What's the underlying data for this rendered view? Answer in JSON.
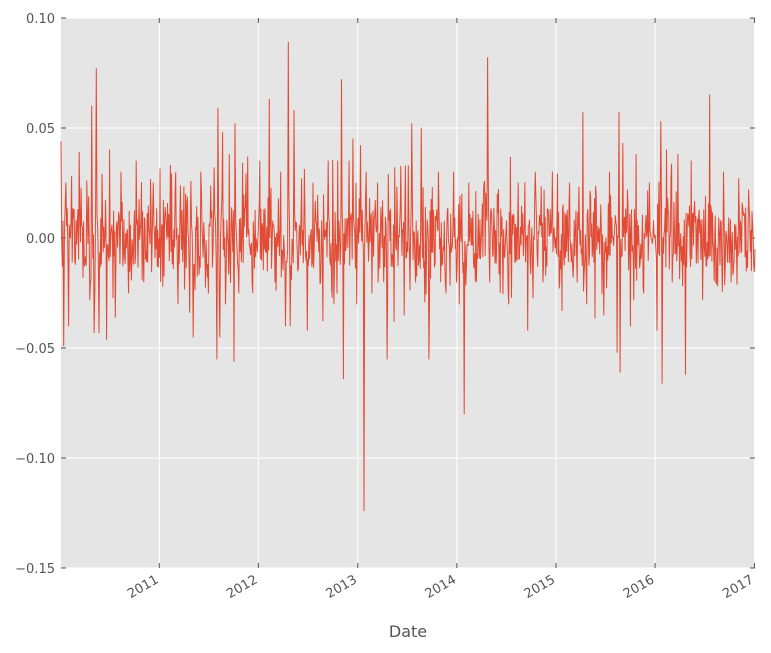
{
  "chart_data": {
    "type": "line",
    "title": "",
    "xlabel": "Date",
    "ylabel": "",
    "x_range": [
      "2010-01-04",
      "2017-01-03"
    ],
    "ylim": [
      -0.15,
      0.1
    ],
    "yticks": [
      {
        "value": 0.1,
        "label": "0.10"
      },
      {
        "value": 0.05,
        "label": "0.05"
      },
      {
        "value": 0.0,
        "label": "0.00"
      },
      {
        "value": -0.05,
        "label": "−0.05"
      },
      {
        "value": -0.1,
        "label": "−0.10"
      },
      {
        "value": -0.15,
        "label": "−0.15"
      }
    ],
    "xticks": [
      {
        "date": "2011-01-01",
        "label": "2011"
      },
      {
        "date": "2012-01-01",
        "label": "2012"
      },
      {
        "date": "2013-01-01",
        "label": "2013"
      },
      {
        "date": "2014-01-01",
        "label": "2014"
      },
      {
        "date": "2015-01-01",
        "label": "2015"
      },
      {
        "date": "2016-01-01",
        "label": "2016"
      },
      {
        "date": "2017-01-01",
        "label": "2017"
      }
    ],
    "grid": true,
    "legend": "none",
    "colors": {
      "line": "#E24A33",
      "plot_bg": "#E5E5E5",
      "grid": "#FFFFFF",
      "text": "#555555"
    },
    "series": [
      {
        "points": [
          [
            "2010-01-04",
            0.044
          ],
          [
            "2010-01-14",
            -0.049
          ],
          [
            "2010-01-22",
            0.025
          ],
          [
            "2010-02-01",
            -0.04
          ],
          [
            "2010-02-12",
            0.028
          ],
          [
            "2010-02-26",
            -0.012
          ],
          [
            "2010-03-12",
            0.039
          ],
          [
            "2010-03-26",
            -0.018
          ],
          [
            "2010-04-09",
            0.026
          ],
          [
            "2010-04-20",
            -0.028
          ],
          [
            "2010-04-27",
            0.06
          ],
          [
            "2010-05-06",
            -0.043
          ],
          [
            "2010-05-14",
            0.077
          ],
          [
            "2010-05-24",
            -0.043
          ],
          [
            "2010-06-04",
            0.029
          ],
          [
            "2010-06-21",
            -0.046
          ],
          [
            "2010-07-02",
            0.04
          ],
          [
            "2010-07-23",
            -0.036
          ],
          [
            "2010-08-13",
            0.03
          ],
          [
            "2010-09-10",
            -0.025
          ],
          [
            "2010-10-08",
            0.035
          ],
          [
            "2010-11-05",
            -0.02
          ],
          [
            "2010-12-10",
            0.025
          ],
          [
            "2011-01-14",
            -0.022
          ],
          [
            "2011-02-11",
            0.033
          ],
          [
            "2011-03-11",
            -0.03
          ],
          [
            "2011-04-08",
            0.02
          ],
          [
            "2011-05-06",
            -0.045
          ],
          [
            "2011-06-03",
            0.03
          ],
          [
            "2011-07-01",
            -0.025
          ],
          [
            "2011-07-22",
            0.032
          ],
          [
            "2011-08-01",
            -0.055
          ],
          [
            "2011-08-05",
            0.059
          ],
          [
            "2011-08-12",
            -0.045
          ],
          [
            "2011-08-22",
            0.048
          ],
          [
            "2011-09-02",
            -0.03
          ],
          [
            "2011-09-16",
            0.038
          ],
          [
            "2011-10-03",
            -0.056
          ],
          [
            "2011-10-07",
            0.052
          ],
          [
            "2011-10-21",
            -0.025
          ],
          [
            "2011-11-04",
            0.034
          ],
          [
            "2011-12-09",
            -0.02
          ],
          [
            "2012-01-06",
            0.035
          ],
          [
            "2012-02-03",
            -0.015
          ],
          [
            "2012-02-10",
            0.063
          ],
          [
            "2012-03-02",
            -0.02
          ],
          [
            "2012-03-23",
            0.03
          ],
          [
            "2012-04-10",
            -0.04
          ],
          [
            "2012-04-20",
            0.089
          ],
          [
            "2012-04-27",
            -0.04
          ],
          [
            "2012-05-11",
            0.058
          ],
          [
            "2012-05-25",
            -0.015
          ],
          [
            "2012-06-08",
            0.027
          ],
          [
            "2012-06-29",
            -0.042
          ],
          [
            "2012-07-20",
            0.025
          ],
          [
            "2012-08-17",
            -0.02
          ],
          [
            "2012-09-14",
            0.035
          ],
          [
            "2012-10-05",
            -0.03
          ],
          [
            "2012-10-19",
            0.035
          ],
          [
            "2012-11-02",
            0.072
          ],
          [
            "2012-11-09",
            -0.064
          ],
          [
            "2012-11-30",
            0.035
          ],
          [
            "2012-12-14",
            0.045
          ],
          [
            "2012-12-28",
            -0.03
          ],
          [
            "2013-01-11",
            0.042
          ],
          [
            "2013-01-24",
            -0.124
          ],
          [
            "2013-02-01",
            0.03
          ],
          [
            "2013-02-22",
            -0.025
          ],
          [
            "2013-03-15",
            0.025
          ],
          [
            "2013-04-19",
            -0.055
          ],
          [
            "2013-05-17",
            0.032
          ],
          [
            "2013-06-21",
            -0.035
          ],
          [
            "2013-07-19",
            0.052
          ],
          [
            "2013-08-02",
            -0.02
          ],
          [
            "2013-08-23",
            0.05
          ],
          [
            "2013-09-20",
            -0.055
          ],
          [
            "2013-10-25",
            0.03
          ],
          [
            "2013-11-22",
            -0.025
          ],
          [
            "2013-12-20",
            0.03
          ],
          [
            "2014-01-10",
            -0.03
          ],
          [
            "2014-01-28",
            -0.08
          ],
          [
            "2014-02-14",
            0.025
          ],
          [
            "2014-03-14",
            -0.02
          ],
          [
            "2014-04-11",
            0.025
          ],
          [
            "2014-04-24",
            0.082
          ],
          [
            "2014-05-02",
            -0.02
          ],
          [
            "2014-05-30",
            0.02
          ],
          [
            "2014-07-11",
            -0.03
          ],
          [
            "2014-08-15",
            0.025
          ],
          [
            "2014-09-19",
            -0.042
          ],
          [
            "2014-10-17",
            0.03
          ],
          [
            "2014-11-14",
            -0.02
          ],
          [
            "2014-12-19",
            0.03
          ],
          [
            "2015-01-23",
            -0.033
          ],
          [
            "2015-02-20",
            0.025
          ],
          [
            "2015-03-20",
            -0.02
          ],
          [
            "2015-04-10",
            0.057
          ],
          [
            "2015-04-24",
            -0.03
          ],
          [
            "2015-05-29",
            0.02
          ],
          [
            "2015-06-26",
            -0.035
          ],
          [
            "2015-07-17",
            0.03
          ],
          [
            "2015-08-14",
            -0.052
          ],
          [
            "2015-08-21",
            0.057
          ],
          [
            "2015-08-25",
            -0.061
          ],
          [
            "2015-09-04",
            0.043
          ],
          [
            "2015-10-02",
            -0.04
          ],
          [
            "2015-10-23",
            0.038
          ],
          [
            "2015-11-20",
            -0.025
          ],
          [
            "2015-12-11",
            0.025
          ],
          [
            "2016-01-08",
            -0.042
          ],
          [
            "2016-01-22",
            0.053
          ],
          [
            "2016-01-27",
            -0.066
          ],
          [
            "2016-02-12",
            0.04
          ],
          [
            "2016-03-04",
            -0.02
          ],
          [
            "2016-03-25",
            0.038
          ],
          [
            "2016-04-22",
            -0.062
          ],
          [
            "2016-05-13",
            0.035
          ],
          [
            "2016-06-24",
            -0.028
          ],
          [
            "2016-07-20",
            0.065
          ],
          [
            "2016-08-12",
            -0.02
          ],
          [
            "2016-09-09",
            0.03
          ],
          [
            "2016-10-07",
            -0.02
          ],
          [
            "2016-11-04",
            0.027
          ],
          [
            "2016-12-02",
            -0.015
          ],
          [
            "2016-12-23",
            0.012
          ],
          [
            "2017-01-03",
            -0.005
          ]
        ]
      }
    ]
  }
}
